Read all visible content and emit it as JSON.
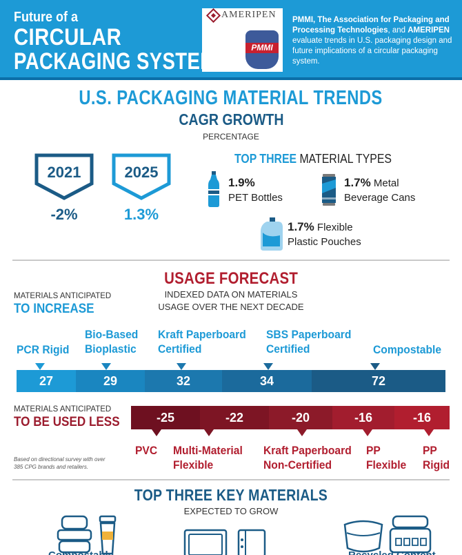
{
  "header": {
    "title_line1": "Future of a",
    "title_line2": "CIRCULAR",
    "title_line3": "PACKAGING SYSTEM",
    "ameripen_logo": "AMERIPEN",
    "pmmi_logo": "PMMI",
    "desc_bold1": "PMMI, The Association for Packaging and Processing Technologies",
    "desc_text1": ", and ",
    "desc_bold2": "AMERIPEN",
    "desc_text2": " evaluate trends in U.S. packaging design and future implications of a circular packaging system."
  },
  "trends": {
    "title": "U.S. PACKAGING MATERIAL TRENDS",
    "cagr_title": "CAGR GROWTH",
    "cagr_subtitle": "PERCENTAGE",
    "years": [
      {
        "year": "2021",
        "value": "-2%"
      },
      {
        "year": "2025",
        "value": "1.3%"
      }
    ],
    "top_three_bold": "TOP THREE",
    "top_three_rest": " MATERIAL TYPES",
    "materials": [
      {
        "pct": "1.9%",
        "line1": "",
        "line2": "PET Bottles",
        "icon": "pet-bottle-icon"
      },
      {
        "pct": "1.7%",
        "line1": " Metal",
        "line2": "Beverage Cans",
        "icon": "beverage-can-icon"
      },
      {
        "pct": "1.7%",
        "line1": " Flexible",
        "line2": "Plastic Pouches",
        "icon": "pouch-icon"
      }
    ]
  },
  "forecast": {
    "title": "USAGE FORECAST",
    "subtitle_line1": "INDEXED DATA ON MATERIALS",
    "subtitle_line2": "USAGE OVER THE NEXT DECADE",
    "increase_label_small": "MATERIALS ANTICIPATED",
    "increase_label_big": "TO INCREASE",
    "increase": [
      {
        "line1": "PCR Rigid",
        "line2": "",
        "value": "27",
        "color": "#1d9ad6"
      },
      {
        "line1": "Bio-Based",
        "line2": "Bioplastic",
        "value": "29",
        "color": "#1a86c0"
      },
      {
        "line1": "Kraft Paperboard",
        "line2": "Certified",
        "value": "32",
        "color": "#1c78ae"
      },
      {
        "line1": "SBS Paperboard",
        "line2": "Certified",
        "value": "34",
        "color": "#1b6a9c"
      },
      {
        "line1": "Compostable",
        "line2": "",
        "value": "72",
        "color": "#1b5b86"
      }
    ],
    "decrease_label_small": "MATERIALS ANTICIPATED",
    "decrease_label_big": "TO BE USED LESS",
    "decrease": [
      {
        "line1": "PVC",
        "line2": "",
        "value": "-25",
        "color": "#6e1020"
      },
      {
        "line1": "Multi-Material",
        "line2": "Flexible",
        "value": "-22",
        "color": "#7d1524"
      },
      {
        "line1": "Kraft Paperboard",
        "line2": "Non-Certified",
        "value": "-20",
        "color": "#8c1a29"
      },
      {
        "line1": "PP",
        "line2": "Flexible",
        "value": "-16",
        "color": "#a21d2e"
      },
      {
        "line1": "PP",
        "line2": "Rigid",
        "value": "-16",
        "color": "#b11e2f"
      }
    ],
    "footnote": "Based on directional survey with over 385 CPG brands and retailers."
  },
  "key_materials": {
    "title": "TOP THREE KEY MATERIALS",
    "subtitle": "EXPECTED TO GROW",
    "bottom_left": "Compostable",
    "bottom_right": "Recycled Content"
  }
}
